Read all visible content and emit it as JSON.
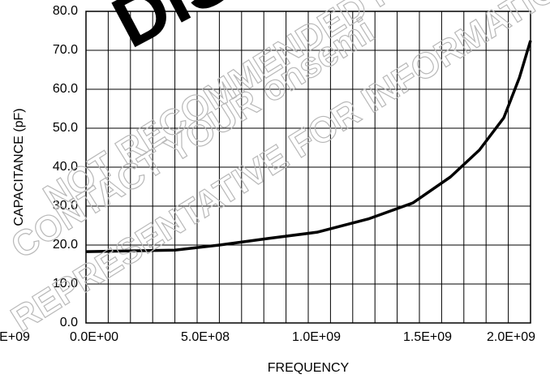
{
  "chart_data": {
    "type": "line",
    "x_title": "FREQUENCY",
    "y_title": "CAPACITANCE (pF)",
    "x_clipped_label": "E+09",
    "watermark": [
      "DISCONTINUED",
      "NOT RECOMMENDED FOR NEW DESIGN",
      "CONTACT YOUR onsemi",
      "REPRESENTATIVE FOR INFORMATION"
    ],
    "x": [
      0,
      400000000,
      600000000,
      820000000,
      1040000000,
      1270000000,
      1470000000,
      1640000000,
      1770000000,
      1880000000,
      1950000000,
      2000000000
    ],
    "series": [
      {
        "color": "#000000",
        "values": [
          18.3,
          18.7,
          20.0,
          21.7,
          23.3,
          26.7,
          30.8,
          37.5,
          44.4,
          52.7,
          63.0,
          72.5
        ]
      }
    ],
    "xlim": [
      0,
      2000000000
    ],
    "xticks": [
      {
        "value": 0,
        "label": "0.0E+00"
      },
      {
        "value": 500000000,
        "label": "5.0E+08"
      },
      {
        "value": 1000000000,
        "label": "1.0E+09"
      },
      {
        "value": 1500000000,
        "label": "1.5E+09"
      },
      {
        "value": 2000000000,
        "label": "2.0E+09"
      }
    ],
    "ylim": [
      0,
      80
    ],
    "yticks": [
      {
        "value": 0,
        "label": "0.0"
      },
      {
        "value": 10,
        "label": "10.0"
      },
      {
        "value": 20,
        "label": "20.0"
      },
      {
        "value": 30,
        "label": "30.0"
      },
      {
        "value": 40,
        "label": "40.0"
      },
      {
        "value": 50,
        "label": "50.0"
      },
      {
        "value": 60,
        "label": "60.0"
      },
      {
        "value": 70,
        "label": "70.0"
      },
      {
        "value": 80,
        "label": "80.0"
      }
    ],
    "grid": true
  }
}
